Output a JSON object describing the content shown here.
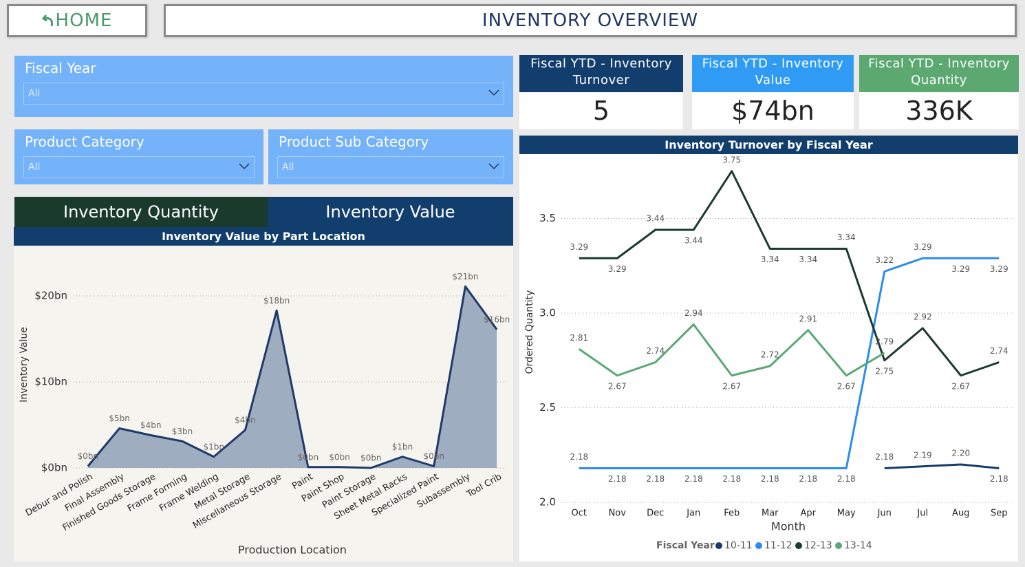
{
  "header": {
    "home": "HOME",
    "title": "INVENTORY OVERVIEW"
  },
  "filters": [
    {
      "label": "Fiscal Year",
      "value": "All"
    },
    {
      "label": "Product Category",
      "value": "All"
    },
    {
      "label": "Product Sub Category",
      "value": "All"
    }
  ],
  "kpis": [
    {
      "title": "Fiscal YTD - Inventory Turnover",
      "value": "5"
    },
    {
      "title": "Fiscal YTD - Inventory Value",
      "value": "$74bn"
    },
    {
      "title": "Fiscal YTD - Inventory Quantity",
      "value": "336K"
    }
  ],
  "tabs": [
    "Inventory Quantity",
    "Inventory Value"
  ],
  "chart_data": [
    {
      "type": "area",
      "title": "Inventory Value by Part Location",
      "x_label": "Production Location",
      "y_label": "Inventory Value",
      "categories": [
        "Debur and Polish",
        "Final Assembly",
        "Finished Goods Storage",
        "Frame Forming",
        "Frame Welding",
        "Metal Storage",
        "Miscellaneous Storage",
        "Paint",
        "Paint Shop",
        "Paint Storage",
        "Sheet Metal Racks",
        "Specialized Paint",
        "Subassembly",
        "Tool Crib"
      ],
      "values": [
        0.2,
        4.6,
        3.8,
        3.1,
        1.3,
        4.4,
        18.3,
        0.1,
        0.1,
        0,
        1.3,
        0.2,
        21.1,
        16.1
      ],
      "value_labels": [
        "$0bn",
        "$5bn",
        "$4bn",
        "$3bn",
        "$1bn",
        "$4bn",
        "$18bn",
        "$0bn",
        "$0bn",
        "$0bn",
        "$1bn",
        "$0bn",
        "$21bn",
        "$16bn"
      ],
      "color": "#1f3a68",
      "fill": "#9eadc0",
      "ylim": [
        0,
        24
      ],
      "yticks": [
        {
          "value": 0,
          "label": "$0bn"
        },
        {
          "value": 10,
          "label": "$10bn"
        },
        {
          "value": 20,
          "label": "$20bn"
        }
      ],
      "grid": true
    },
    {
      "type": "line",
      "title": "Inventory Turnover by Fiscal Year",
      "x_label": "Month",
      "y_label": "Ordered Quantity",
      "legend_title": "Fiscal Year",
      "legend": "bottom",
      "categories": [
        "Oct",
        "Nov",
        "Dec",
        "Jan",
        "Feb",
        "Mar",
        "Apr",
        "May",
        "Jun",
        "Jul",
        "Aug",
        "Sep"
      ],
      "series": [
        {
          "name": "10-11",
          "color": "#173b6b",
          "values": [
            null,
            null,
            null,
            null,
            null,
            null,
            null,
            null,
            2.18,
            2.19,
            2.2,
            2.18
          ],
          "value_labels": [
            null,
            null,
            null,
            null,
            null,
            null,
            null,
            null,
            "2.18",
            "2.19",
            "2.20",
            "2.18"
          ]
        },
        {
          "name": "11-12",
          "color": "#2b8cf0",
          "values": [
            2.18,
            2.18,
            2.18,
            2.18,
            2.18,
            2.18,
            2.18,
            2.18,
            3.22,
            3.29,
            3.29,
            3.29
          ]
        },
        {
          "name": "12-13",
          "color": "#1b3a32",
          "values": [
            3.29,
            3.29,
            3.44,
            3.44,
            3.75,
            3.34,
            3.34,
            3.34,
            2.75,
            2.92,
            2.67,
            2.74
          ]
        },
        {
          "name": "13-14",
          "color": "#5aa874",
          "values": [
            2.81,
            2.67,
            2.74,
            2.94,
            2.67,
            2.72,
            2.91,
            2.67,
            2.79,
            null,
            null,
            null
          ]
        }
      ],
      "ylim": [
        2,
        3.8
      ],
      "yticks": [
        {
          "value": 2,
          "label": "2.0"
        },
        2.5,
        {
          "value": 3,
          "label": "3.0"
        },
        3.5
      ],
      "grid": true
    }
  ]
}
